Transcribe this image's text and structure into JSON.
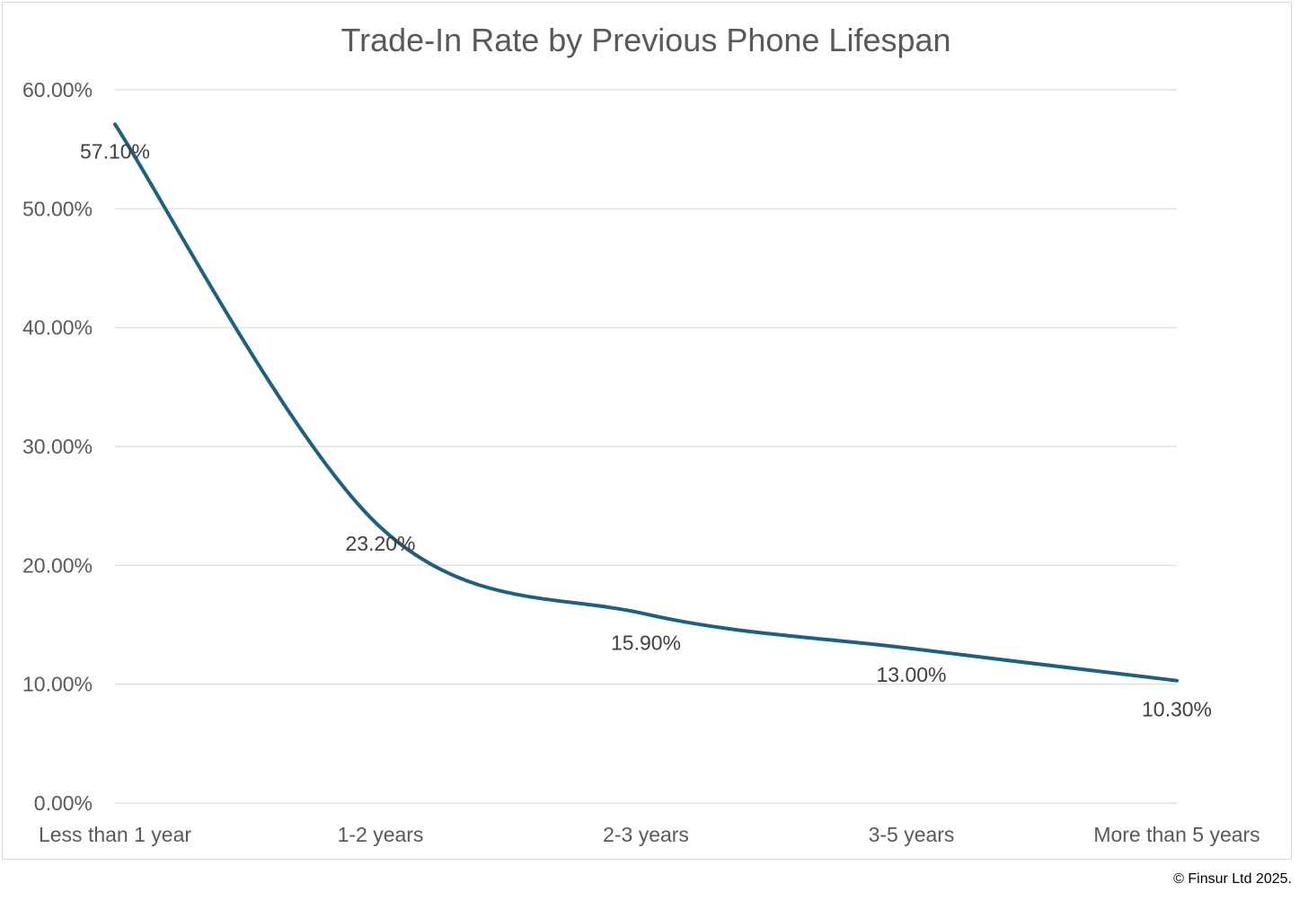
{
  "chart_data": {
    "type": "line",
    "title": "Trade-In Rate by Previous Phone Lifespan",
    "xlabel": "",
    "ylabel": "",
    "categories": [
      "Less than 1 year",
      "1-2 years",
      "2-3 years",
      "3-5 years",
      "More than 5 years"
    ],
    "series": [
      {
        "values": [
          57.1,
          23.2,
          15.9,
          13.0,
          10.3
        ],
        "labels": [
          "57.10%",
          "23.20%",
          "15.90%",
          "13.00%",
          "10.30%"
        ],
        "color": "#1f5f7f"
      }
    ],
    "ylim": [
      0,
      60
    ],
    "yticks": [
      0,
      10,
      20,
      30,
      40,
      50,
      60
    ],
    "ytick_labels": [
      "0.00%",
      "10.00%",
      "20.00%",
      "30.00%",
      "40.00%",
      "50.00%",
      "60.00%"
    ],
    "grid": true,
    "smooth": true,
    "legend": "none"
  },
  "footer": {
    "copyright": "© Finsur Ltd 2025."
  },
  "colors": {
    "line": "#1f5f7f",
    "grid": "#d9d9d9",
    "text": "#595959",
    "title": "#595959"
  }
}
